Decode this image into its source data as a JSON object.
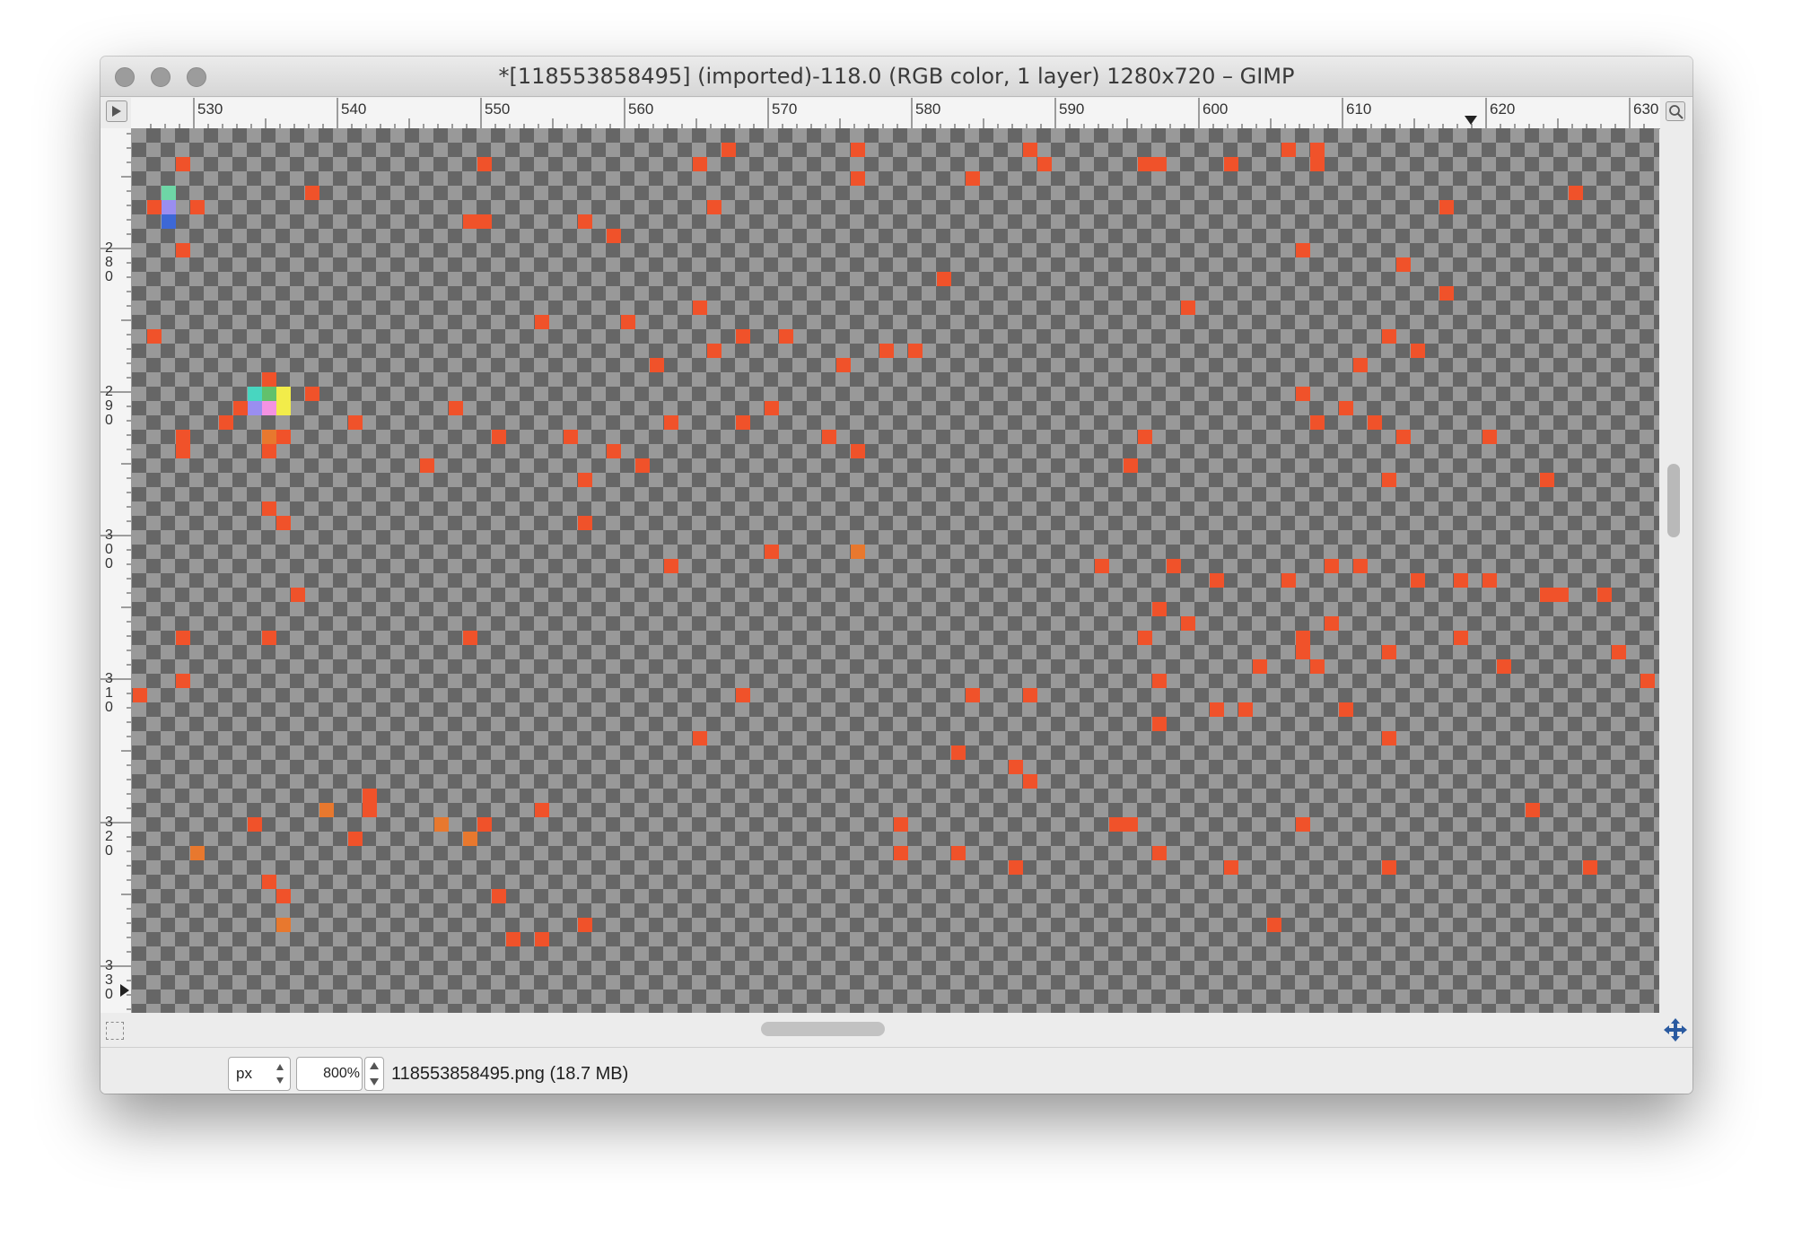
{
  "window": {
    "title": "*[118553858495] (imported)-118.0 (RGB color, 1 layer) 1280x720 – GIMP"
  },
  "ruler": {
    "h_labels": [
      "530",
      "540",
      "550",
      "560",
      "570",
      "580",
      "590",
      "600",
      "610",
      "620",
      "630"
    ],
    "v_labels": [
      "280",
      "290",
      "300",
      "310",
      "320",
      "330"
    ]
  },
  "canvas": {
    "zoom_factor": 8,
    "checker_colors": {
      "light": "#999999",
      "dark": "#666666"
    },
    "pixel_colors": {
      "orange_red": "#f0522a",
      "orange": "#e8782e",
      "teal": "#48d6c0",
      "lavender": "#9a8ef0",
      "blue": "#3d68d6",
      "mint": "#6ed6a6",
      "pink": "#f492e2",
      "yellow": "#f2ec4a",
      "green": "#62c16c"
    }
  },
  "status": {
    "unit": "px",
    "zoom": "800%",
    "file_info": "118553858495.png (18.7 MB)"
  }
}
